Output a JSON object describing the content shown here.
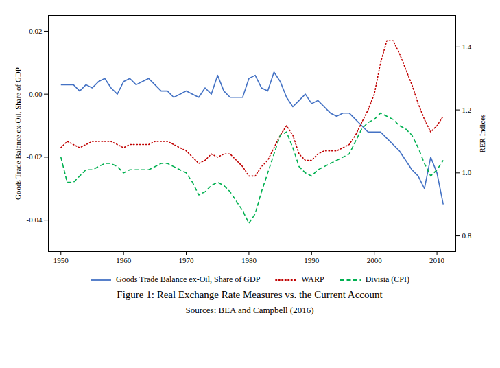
{
  "chart_data": {
    "type": "line",
    "title": "Figure 1:  Real Exchange Rate Measures vs.  the Current Account",
    "subtitle": "Sources:  BEA and Campbell (2016)",
    "ylabel": "Goods Trade Balance ex-Oil, Share of GDP",
    "y2label": "RER Indices",
    "x": [
      1950,
      1951,
      1952,
      1953,
      1954,
      1955,
      1956,
      1957,
      1958,
      1959,
      1960,
      1961,
      1962,
      1963,
      1964,
      1965,
      1966,
      1967,
      1968,
      1969,
      1970,
      1971,
      1972,
      1973,
      1974,
      1975,
      1976,
      1977,
      1978,
      1979,
      1980,
      1981,
      1982,
      1983,
      1984,
      1985,
      1986,
      1987,
      1988,
      1989,
      1990,
      1991,
      1992,
      1993,
      1994,
      1995,
      1996,
      1997,
      1998,
      1999,
      2000,
      2001,
      2002,
      2003,
      2004,
      2005,
      2006,
      2007,
      2008,
      2009,
      2010,
      2011
    ],
    "xlim": [
      1948,
      2013
    ],
    "xticks": [
      1950,
      1960,
      1970,
      1980,
      1990,
      2000,
      2010
    ],
    "ylim": [
      -0.05,
      0.025
    ],
    "yticks": [
      -0.04,
      -0.02,
      {
        "value": 0,
        "label": "0.00"
      },
      0.02
    ],
    "y2lim": [
      0.75,
      1.5
    ],
    "y2ticks": [
      0.8,
      {
        "value": 1.0,
        "label": "1.0"
      },
      1.2,
      1.4
    ],
    "grid": false,
    "legend": "bottom",
    "series": [
      {
        "name": "Goods Trade Balance ex-Oil, Share of GDP",
        "color": "#4472C4",
        "line_style": "solid",
        "axis": "y",
        "values": [
          0.003,
          0.003,
          0.003,
          0.001,
          0.003,
          0.002,
          0.004,
          0.005,
          0.002,
          0.0,
          0.004,
          0.005,
          0.003,
          0.004,
          0.005,
          0.003,
          0.001,
          0.001,
          -0.001,
          0.0,
          0.001,
          0.0,
          -0.001,
          0.002,
          0.0,
          0.006,
          0.001,
          -0.001,
          -0.001,
          -0.001,
          0.005,
          0.006,
          0.002,
          0.001,
          0.007,
          0.004,
          -0.001,
          -0.004,
          -0.002,
          0.0,
          -0.003,
          -0.002,
          -0.004,
          -0.006,
          -0.007,
          -0.006,
          -0.006,
          -0.008,
          -0.01,
          -0.012,
          -0.012,
          -0.012,
          -0.014,
          -0.016,
          -0.018,
          -0.021,
          -0.024,
          -0.026,
          -0.03,
          -0.02,
          -0.025,
          -0.035
        ]
      },
      {
        "name": "WARP",
        "color": "#C00000",
        "line_style": "dotted",
        "axis": "y2",
        "values": [
          1.08,
          1.1,
          1.09,
          1.08,
          1.09,
          1.1,
          1.1,
          1.1,
          1.1,
          1.09,
          1.08,
          1.09,
          1.09,
          1.09,
          1.09,
          1.1,
          1.1,
          1.1,
          1.09,
          1.08,
          1.07,
          1.05,
          1.03,
          1.04,
          1.06,
          1.05,
          1.06,
          1.06,
          1.04,
          1.02,
          0.99,
          0.99,
          1.02,
          1.04,
          1.08,
          1.12,
          1.15,
          1.12,
          1.06,
          1.04,
          1.04,
          1.06,
          1.07,
          1.07,
          1.07,
          1.08,
          1.09,
          1.12,
          1.16,
          1.2,
          1.25,
          1.35,
          1.42,
          1.42,
          1.38,
          1.33,
          1.28,
          1.22,
          1.17,
          1.13,
          1.15,
          1.18
        ]
      },
      {
        "name": "Divisia (CPI)",
        "color": "#00B050",
        "line_style": "dashed",
        "axis": "y2",
        "values": [
          1.05,
          0.97,
          0.97,
          0.99,
          1.01,
          1.01,
          1.02,
          1.03,
          1.03,
          1.02,
          1.0,
          1.01,
          1.01,
          1.01,
          1.01,
          1.02,
          1.03,
          1.03,
          1.02,
          1.01,
          1.0,
          0.97,
          0.93,
          0.94,
          0.96,
          0.97,
          0.96,
          0.94,
          0.91,
          0.88,
          0.84,
          0.87,
          0.94,
          1.0,
          1.06,
          1.12,
          1.13,
          1.08,
          1.02,
          1.0,
          0.99,
          1.01,
          1.02,
          1.03,
          1.04,
          1.05,
          1.06,
          1.1,
          1.14,
          1.16,
          1.17,
          1.19,
          1.18,
          1.17,
          1.15,
          1.14,
          1.12,
          1.08,
          1.03,
          0.99,
          1.01,
          1.04
        ]
      }
    ]
  }
}
